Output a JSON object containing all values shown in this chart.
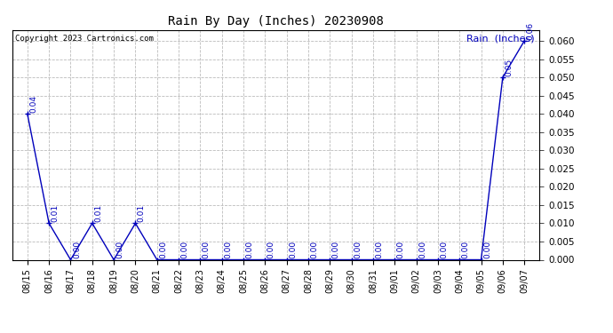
{
  "title": "Rain By Day (Inches) 20230908",
  "copyright": "Copyright 2023 Cartronics.com",
  "legend_label": "Rain  (Inches)",
  "line_color": "#0000bb",
  "background_color": "#ffffff",
  "grid_color": "#bbbbbb",
  "text_color": "#000000",
  "label_color": "#0000bb",
  "ylim": [
    0.0,
    0.063
  ],
  "yticks": [
    0.0,
    0.005,
    0.01,
    0.015,
    0.02,
    0.025,
    0.03,
    0.035,
    0.04,
    0.045,
    0.05,
    0.055,
    0.06
  ],
  "dates": [
    "08/15",
    "08/16",
    "08/17",
    "08/18",
    "08/19",
    "08/20",
    "08/21",
    "08/22",
    "08/23",
    "08/24",
    "08/25",
    "08/26",
    "08/27",
    "08/28",
    "08/29",
    "08/30",
    "08/31",
    "09/01",
    "09/02",
    "09/03",
    "09/04",
    "09/05",
    "09/06",
    "09/07"
  ],
  "values": [
    0.04,
    0.01,
    0.0,
    0.01,
    0.0,
    0.01,
    0.0,
    0.0,
    0.0,
    0.0,
    0.0,
    0.0,
    0.0,
    0.0,
    0.0,
    0.0,
    0.0,
    0.0,
    0.0,
    0.0,
    0.0,
    0.0,
    0.05,
    0.06
  ],
  "fig_width": 6.9,
  "fig_height": 3.75,
  "dpi": 100
}
